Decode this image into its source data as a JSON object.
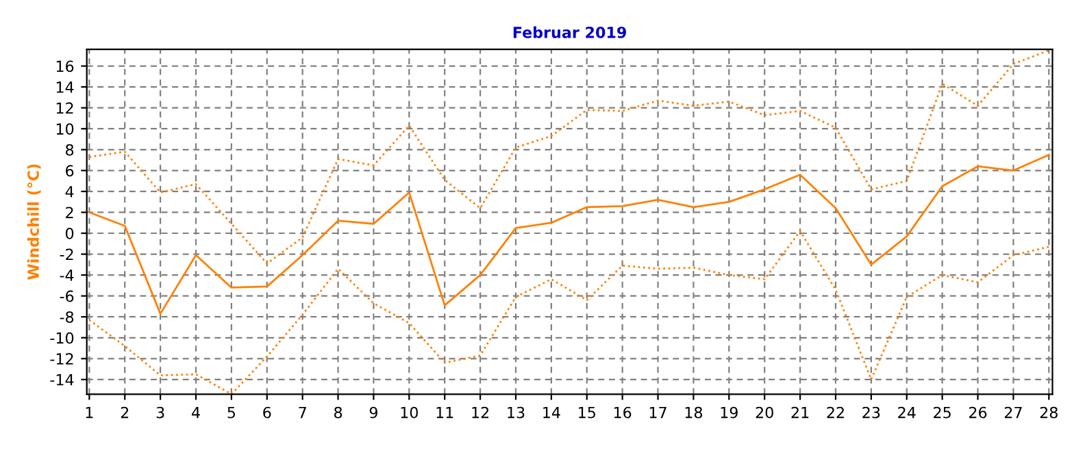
{
  "chart_data": {
    "type": "line",
    "title": "Februar 2019",
    "ylabel": "Windchill (°C)",
    "x": [
      1,
      2,
      3,
      4,
      5,
      6,
      7,
      8,
      9,
      10,
      11,
      12,
      13,
      14,
      15,
      16,
      17,
      18,
      19,
      20,
      21,
      22,
      23,
      24,
      25,
      26,
      27,
      28
    ],
    "series": [
      {
        "color": "#ff8000",
        "line_style": "dotted",
        "values": [
          7.3,
          7.8,
          3.9,
          4.7,
          0.9,
          -2.9,
          -0.4,
          7.1,
          6.5,
          10.3,
          5.1,
          2.4,
          8.2,
          9.3,
          11.8,
          11.7,
          12.7,
          12.2,
          12.6,
          11.3,
          11.7,
          10.1,
          4.2,
          5.0,
          14.3,
          12.2,
          16.2,
          17.5
        ]
      },
      {
        "color": "#ff8000",
        "line_style": "solid",
        "values": [
          2.0,
          0.7,
          -7.7,
          -2.1,
          -5.2,
          -5.1,
          -2.1,
          1.2,
          0.9,
          3.9,
          -6.9,
          -4.0,
          0.5,
          1.0,
          2.5,
          2.6,
          3.2,
          2.5,
          3.0,
          4.2,
          5.6,
          2.4,
          -3.0,
          -0.3,
          4.5,
          6.4,
          6.0,
          7.5
        ]
      },
      {
        "color": "#ff8000",
        "line_style": "dotted",
        "values": [
          -8.3,
          -10.8,
          -13.6,
          -13.5,
          -15.4,
          -11.8,
          -7.8,
          -3.4,
          -6.7,
          -8.6,
          -12.4,
          -11.7,
          -6.1,
          -4.4,
          -6.4,
          -3.1,
          -3.4,
          -3.3,
          -4.0,
          -4.4,
          0.2,
          -5.4,
          -14.0,
          -6.1,
          -4.0,
          -4.7,
          -2.1,
          -1.3
        ]
      }
    ],
    "xlim": [
      0.93,
      28.1
    ],
    "ylim": [
      -15.4,
      17.6
    ],
    "xticks": [
      1,
      2,
      3,
      4,
      5,
      6,
      7,
      8,
      9,
      10,
      11,
      12,
      13,
      14,
      15,
      16,
      17,
      18,
      19,
      20,
      21,
      22,
      23,
      24,
      25,
      26,
      27,
      28
    ],
    "yticks": [
      -14,
      -12,
      -10,
      -8,
      -6,
      -4,
      -2,
      0,
      2,
      4,
      6,
      8,
      10,
      12,
      14,
      16
    ],
    "grid": true
  }
}
